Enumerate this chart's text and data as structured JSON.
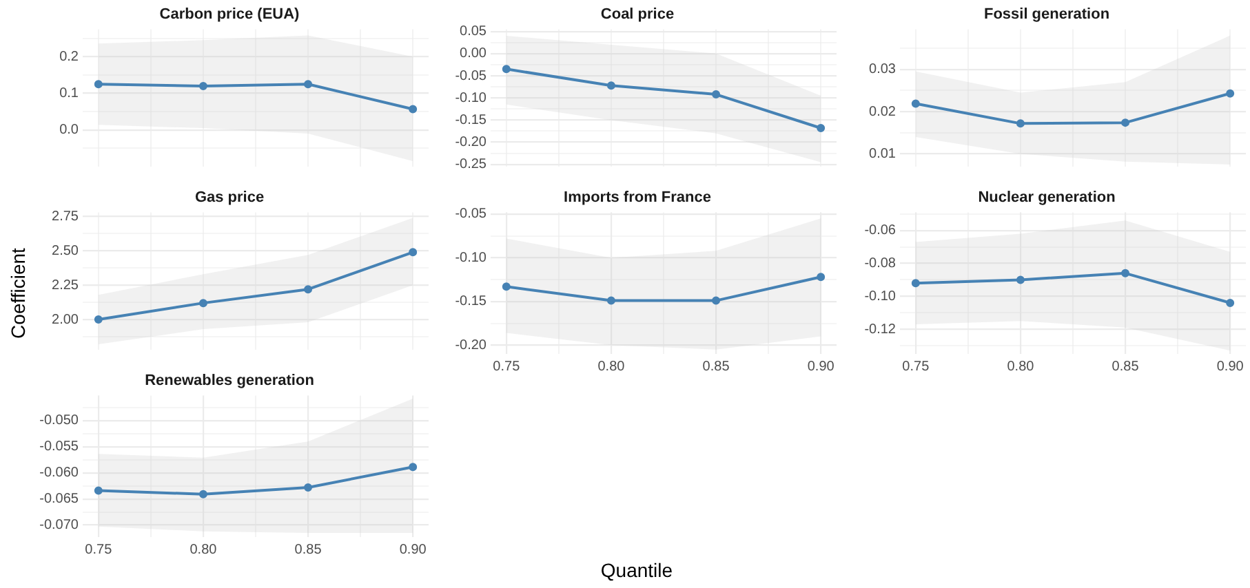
{
  "chart_data": [
    {
      "type": "line",
      "title": "Carbon price (EUA)",
      "x": [
        0.75,
        0.8,
        0.85,
        0.9
      ],
      "xlim": [
        0.7425,
        0.9075
      ],
      "ylim": [
        -0.1,
        0.275
      ],
      "tick_labels": "y",
      "grid": true,
      "marker": "circle",
      "line_style": "solid",
      "xticks": [
        {
          "value": 0.75,
          "label": null
        },
        {
          "value": 0.775,
          "label": null
        },
        {
          "value": 0.8,
          "label": null
        },
        {
          "value": 0.825,
          "label": null
        },
        {
          "value": 0.85,
          "label": null
        },
        {
          "value": 0.875,
          "label": null
        },
        {
          "value": 0.9,
          "label": null
        }
      ],
      "yticks": [
        {
          "value": -0.05,
          "label": null
        },
        {
          "value": 0,
          "label": "0.0"
        },
        {
          "value": 0.05,
          "label": null
        },
        {
          "value": 0.1,
          "label": "0.1"
        },
        {
          "value": 0.15,
          "label": null
        },
        {
          "value": 0.2,
          "label": "0.2"
        },
        {
          "value": 0.25,
          "label": null
        }
      ],
      "series": [
        {
          "color": "#4682b4",
          "values": [
            0.125,
            0.12,
            0.125,
            0.057
          ],
          "lower": [
            0.014,
            0.005,
            -0.01,
            -0.085
          ],
          "upper": [
            0.236,
            0.245,
            0.258,
            0.2
          ]
        }
      ]
    },
    {
      "type": "line",
      "title": "Coal price",
      "x": [
        0.75,
        0.8,
        0.85,
        0.9
      ],
      "xlim": [
        0.7425,
        0.9075
      ],
      "ylim": [
        -0.255,
        0.055
      ],
      "tick_labels": "y",
      "grid": true,
      "marker": "circle",
      "line_style": "solid",
      "xticks": [
        {
          "value": 0.75,
          "label": null
        },
        {
          "value": 0.775,
          "label": null
        },
        {
          "value": 0.8,
          "label": null
        },
        {
          "value": 0.825,
          "label": null
        },
        {
          "value": 0.85,
          "label": null
        },
        {
          "value": 0.875,
          "label": null
        },
        {
          "value": 0.9,
          "label": null
        }
      ],
      "yticks": [
        {
          "value": -0.25,
          "label": "-0.25"
        },
        {
          "value": -0.225,
          "label": null
        },
        {
          "value": -0.2,
          "label": "-0.20"
        },
        {
          "value": -0.175,
          "label": null
        },
        {
          "value": -0.15,
          "label": "-0.15"
        },
        {
          "value": -0.125,
          "label": null
        },
        {
          "value": -0.1,
          "label": "-0.10"
        },
        {
          "value": -0.075,
          "label": null
        },
        {
          "value": -0.05,
          "label": "-0.05"
        },
        {
          "value": -0.025,
          "label": null
        },
        {
          "value": 0,
          "label": "0.00"
        },
        {
          "value": 0.025,
          "label": null
        },
        {
          "value": 0.05,
          "label": "0.05"
        }
      ],
      "series": [
        {
          "color": "#4682b4",
          "values": [
            -0.035,
            -0.072,
            -0.092,
            -0.168
          ],
          "lower": [
            -0.115,
            -0.15,
            -0.18,
            -0.245
          ],
          "upper": [
            0.04,
            0.02,
            0.0,
            -0.095
          ]
        }
      ]
    },
    {
      "type": "line",
      "title": "Fossil generation",
      "x": [
        0.75,
        0.8,
        0.85,
        0.9
      ],
      "xlim": [
        0.7425,
        0.9075
      ],
      "ylim": [
        0.007,
        0.0395
      ],
      "tick_labels": "y",
      "grid": true,
      "marker": "circle",
      "line_style": "solid",
      "xticks": [
        {
          "value": 0.75,
          "label": null
        },
        {
          "value": 0.775,
          "label": null
        },
        {
          "value": 0.8,
          "label": null
        },
        {
          "value": 0.825,
          "label": null
        },
        {
          "value": 0.85,
          "label": null
        },
        {
          "value": 0.875,
          "label": null
        },
        {
          "value": 0.9,
          "label": null
        }
      ],
      "yticks": [
        {
          "value": 0.01,
          "label": "0.01"
        },
        {
          "value": 0.015,
          "label": null
        },
        {
          "value": 0.02,
          "label": "0.02"
        },
        {
          "value": 0.025,
          "label": null
        },
        {
          "value": 0.03,
          "label": "0.03"
        },
        {
          "value": 0.035,
          "label": null
        }
      ],
      "series": [
        {
          "color": "#4682b4",
          "values": [
            0.0219,
            0.0172,
            0.0174,
            0.0243
          ],
          "lower": [
            0.014,
            0.01,
            0.0082,
            0.0075
          ],
          "upper": [
            0.0295,
            0.0245,
            0.027,
            0.038
          ]
        }
      ]
    },
    {
      "type": "line",
      "title": "Gas price",
      "ylabel": "Coefficient",
      "x": [
        0.75,
        0.8,
        0.85,
        0.9
      ],
      "xlim": [
        0.7425,
        0.9075
      ],
      "ylim": [
        1.78,
        2.78
      ],
      "tick_labels": "y",
      "grid": true,
      "marker": "circle",
      "line_style": "solid",
      "xticks": [
        {
          "value": 0.75,
          "label": null
        },
        {
          "value": 0.775,
          "label": null
        },
        {
          "value": 0.8,
          "label": null
        },
        {
          "value": 0.825,
          "label": null
        },
        {
          "value": 0.85,
          "label": null
        },
        {
          "value": 0.875,
          "label": null
        },
        {
          "value": 0.9,
          "label": null
        }
      ],
      "yticks": [
        {
          "value": 1.875,
          "label": null
        },
        {
          "value": 2,
          "label": "2.00"
        },
        {
          "value": 2.125,
          "label": null
        },
        {
          "value": 2.25,
          "label": "2.25"
        },
        {
          "value": 2.375,
          "label": null
        },
        {
          "value": 2.5,
          "label": "2.50"
        },
        {
          "value": 2.625,
          "label": null
        },
        {
          "value": 2.75,
          "label": "2.75"
        }
      ],
      "series": [
        {
          "color": "#4682b4",
          "values": [
            2.0,
            2.12,
            2.22,
            2.49
          ],
          "lower": [
            1.82,
            1.93,
            1.98,
            2.25
          ],
          "upper": [
            2.18,
            2.33,
            2.47,
            2.74
          ]
        }
      ]
    },
    {
      "type": "line",
      "title": "Imports from France",
      "xlabel": "Quantile",
      "x": [
        0.75,
        0.8,
        0.85,
        0.9
      ],
      "xlim": [
        0.7425,
        0.9075
      ],
      "ylim": [
        -0.21,
        -0.048
      ],
      "grid": true,
      "marker": "circle",
      "line_style": "solid",
      "xticks": [
        {
          "value": 0.75,
          "label": "0.75"
        },
        {
          "value": 0.775,
          "label": null
        },
        {
          "value": 0.8,
          "label": "0.80"
        },
        {
          "value": 0.825,
          "label": null
        },
        {
          "value": 0.85,
          "label": "0.85"
        },
        {
          "value": 0.875,
          "label": null
        },
        {
          "value": 0.9,
          "label": "0.90"
        }
      ],
      "yticks": [
        {
          "value": -0.2,
          "label": "-0.20"
        },
        {
          "value": -0.175,
          "label": null
        },
        {
          "value": -0.15,
          "label": "-0.15"
        },
        {
          "value": -0.125,
          "label": null
        },
        {
          "value": -0.1,
          "label": "-0.10"
        },
        {
          "value": -0.075,
          "label": null
        },
        {
          "value": -0.05,
          "label": "-0.05"
        }
      ],
      "series": [
        {
          "color": "#4682b4",
          "values": [
            -0.133,
            -0.149,
            -0.149,
            -0.122
          ],
          "lower": [
            -0.186,
            -0.2,
            -0.205,
            -0.19
          ],
          "upper": [
            -0.078,
            -0.1,
            -0.092,
            -0.055
          ]
        }
      ]
    },
    {
      "type": "line",
      "title": "Nuclear generation",
      "x": [
        0.75,
        0.8,
        0.85,
        0.9
      ],
      "xlim": [
        0.7425,
        0.9075
      ],
      "ylim": [
        -0.135,
        -0.049
      ],
      "grid": true,
      "marker": "circle",
      "line_style": "solid",
      "xticks": [
        {
          "value": 0.75,
          "label": "0.75"
        },
        {
          "value": 0.775,
          "label": null
        },
        {
          "value": 0.8,
          "label": "0.80"
        },
        {
          "value": 0.825,
          "label": null
        },
        {
          "value": 0.85,
          "label": "0.85"
        },
        {
          "value": 0.875,
          "label": null
        },
        {
          "value": 0.9,
          "label": "0.90"
        }
      ],
      "yticks": [
        {
          "value": -0.13,
          "label": null
        },
        {
          "value": -0.12,
          "label": "-0.12"
        },
        {
          "value": -0.11,
          "label": null
        },
        {
          "value": -0.1,
          "label": "-0.10"
        },
        {
          "value": -0.09,
          "label": null
        },
        {
          "value": -0.08,
          "label": "-0.08"
        },
        {
          "value": -0.07,
          "label": null
        },
        {
          "value": -0.06,
          "label": "-0.06"
        },
        {
          "value": -0.05,
          "label": null
        }
      ],
      "series": [
        {
          "color": "#4682b4",
          "values": [
            -0.092,
            -0.09,
            -0.086,
            -0.104
          ],
          "lower": [
            -0.117,
            -0.115,
            -0.119,
            -0.133
          ],
          "upper": [
            -0.067,
            -0.062,
            -0.054,
            -0.073
          ]
        }
      ]
    },
    {
      "type": "line",
      "title": "Renewables generation",
      "x": [
        0.75,
        0.8,
        0.85,
        0.9
      ],
      "xlim": [
        0.7425,
        0.9075
      ],
      "ylim": [
        -0.0723,
        -0.0452
      ],
      "grid": true,
      "marker": "circle",
      "line_style": "solid",
      "xticks": [
        {
          "value": 0.75,
          "label": "0.75"
        },
        {
          "value": 0.775,
          "label": null
        },
        {
          "value": 0.8,
          "label": "0.80"
        },
        {
          "value": 0.825,
          "label": null
        },
        {
          "value": 0.85,
          "label": "0.85"
        },
        {
          "value": 0.875,
          "label": null
        },
        {
          "value": 0.9,
          "label": "0.90"
        }
      ],
      "yticks": [
        {
          "value": -0.07,
          "label": "-0.070"
        },
        {
          "value": -0.0675,
          "label": null
        },
        {
          "value": -0.065,
          "label": "-0.065"
        },
        {
          "value": -0.0625,
          "label": null
        },
        {
          "value": -0.06,
          "label": "-0.060"
        },
        {
          "value": -0.0575,
          "label": null
        },
        {
          "value": -0.055,
          "label": "-0.055"
        },
        {
          "value": -0.0525,
          "label": null
        },
        {
          "value": -0.05,
          "label": "-0.050"
        },
        {
          "value": -0.0475,
          "label": null
        }
      ],
      "series": [
        {
          "color": "#4682b4",
          "values": [
            -0.0634,
            -0.0641,
            -0.0628,
            -0.0589
          ],
          "lower": [
            -0.0703,
            -0.0712,
            -0.0715,
            -0.0715
          ],
          "upper": [
            -0.0564,
            -0.0571,
            -0.054,
            -0.0458
          ]
        }
      ]
    }
  ]
}
